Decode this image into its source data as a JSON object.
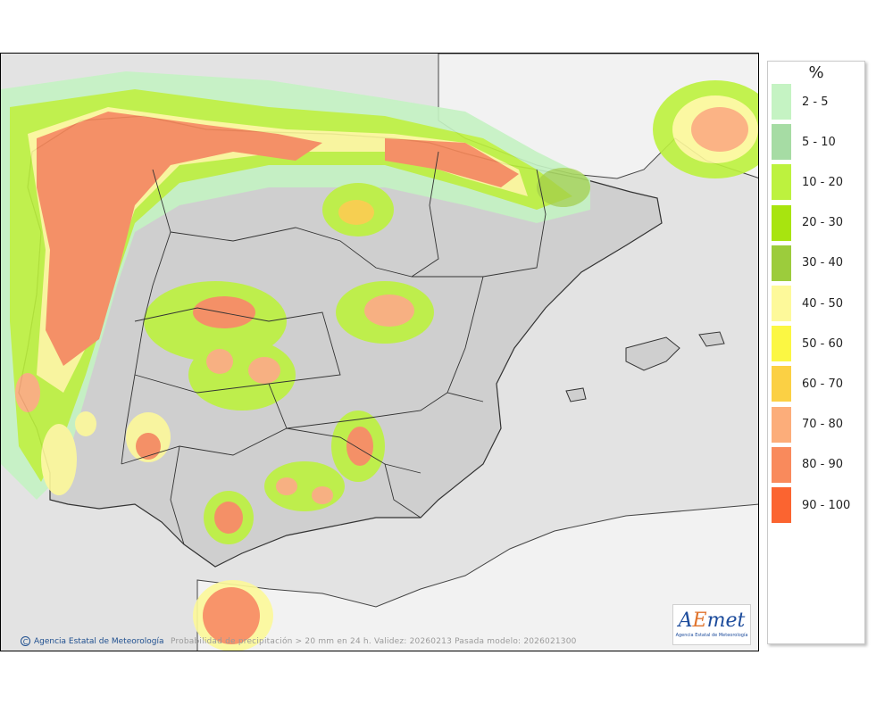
{
  "legend": {
    "unit": "%",
    "items": [
      {
        "label": "2 - 5",
        "color": "#c5f3c3"
      },
      {
        "label": "5 - 10",
        "color": "#a6dca4"
      },
      {
        "label": "10 - 20",
        "color": "#bdf23e"
      },
      {
        "label": "20 - 30",
        "color": "#a8e40f"
      },
      {
        "label": "30 - 40",
        "color": "#9ccc3c"
      },
      {
        "label": "40 - 50",
        "color": "#fdf99a"
      },
      {
        "label": "50 - 60",
        "color": "#fbf743"
      },
      {
        "label": "60 - 70",
        "color": "#fbd044"
      },
      {
        "label": "70 - 80",
        "color": "#fcad7a"
      },
      {
        "label": "80 - 90",
        "color": "#f98a5c"
      },
      {
        "label": "90 - 100",
        "color": "#fb6430"
      }
    ]
  },
  "footer": {
    "credit": "Agencia Estatal de Meteorología",
    "caption": "Probabilidad de precipitación > 20 mm en 24 h. Validez: 20260213 Pasada modelo: 2026021300"
  },
  "logo": {
    "brand_a": "A",
    "brand_e": "E",
    "brand_rest": "met",
    "subtitle": "Agencia Estatal de Meteorología"
  }
}
